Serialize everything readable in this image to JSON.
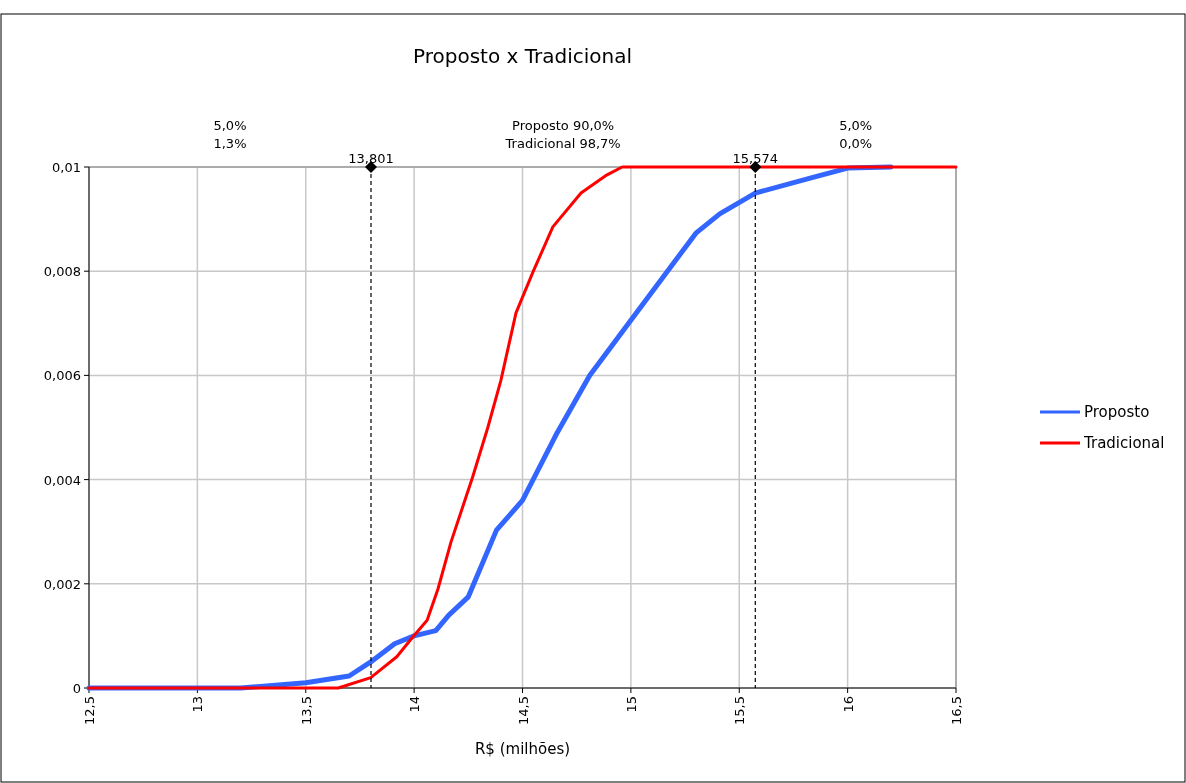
{
  "chart_data": {
    "type": "line",
    "title": "Proposto x Tradicional",
    "xlabel": "R$ (milhões)",
    "annotations": [
      "5,0%\n1,3%",
      "Proposto 90,0%\nTradicional 98,7%",
      "5,0%\n0,0%"
    ],
    "series": [
      {
        "name": "Proposto",
        "color": "#3366ff",
        "x": [
          12.5,
          13.2,
          13.5,
          13.7,
          13.8,
          13.91,
          14.0,
          14.1,
          14.16,
          14.25,
          14.38,
          14.5,
          14.66,
          14.81,
          15.0,
          15.3,
          15.41,
          15.574,
          15.84,
          16.0,
          16.2
        ],
        "values": [
          0,
          0,
          0.0001,
          0.00023,
          0.0005,
          0.00085,
          0.001,
          0.0011,
          0.0014,
          0.00175,
          0.00303,
          0.0036,
          0.0049,
          0.006,
          0.00706,
          0.00873,
          0.0091,
          0.0095,
          0.0098,
          0.00998,
          0.01
        ]
      },
      {
        "name": "Tradicional",
        "color": "#ff0000",
        "x": [
          12.5,
          13.65,
          13.8,
          13.92,
          13.99,
          14.06,
          14.11,
          14.17,
          14.27,
          14.34,
          14.4,
          14.47,
          14.55,
          14.64,
          14.77,
          14.89,
          14.96,
          15.1,
          16.5
        ],
        "values": [
          0,
          0,
          0.0002,
          0.0006,
          0.00096,
          0.0013,
          0.0019,
          0.0028,
          0.00405,
          0.005,
          0.0059,
          0.0072,
          0.008,
          0.00885,
          0.0095,
          0.00985,
          0.01,
          0.01,
          0.01
        ]
      }
    ],
    "xlim": [
      12.5,
      16.5
    ],
    "xticks": [
      {
        "value": 12.5,
        "label": "12,5"
      },
      13,
      {
        "value": 13.5,
        "label": "13,5"
      },
      14,
      {
        "value": 14.5,
        "label": "14,5"
      },
      15,
      {
        "value": 15.5,
        "label": "15,5"
      },
      16,
      {
        "value": 16.5,
        "label": "16,5"
      }
    ],
    "ylim": [
      0,
      0.01
    ],
    "yticks": [
      0,
      {
        "value": 0.002,
        "label": "0,002"
      },
      {
        "value": 0.004,
        "label": "0,004"
      },
      {
        "value": 0.006,
        "label": "0,006"
      },
      {
        "value": 0.008,
        "label": "0,008"
      },
      {
        "value": 0.01,
        "label": "0,01"
      }
    ],
    "ref_lines": [
      {
        "axis": "x",
        "value": 13.801,
        "label": "13,801",
        "color": "#000000",
        "line_style": "dashed"
      },
      {
        "axis": "x",
        "value": 15.574,
        "label": "15,574",
        "color": "#000000",
        "line_style": "dashed"
      }
    ],
    "grid": true,
    "legend": "right",
    "line_style": "solid"
  }
}
